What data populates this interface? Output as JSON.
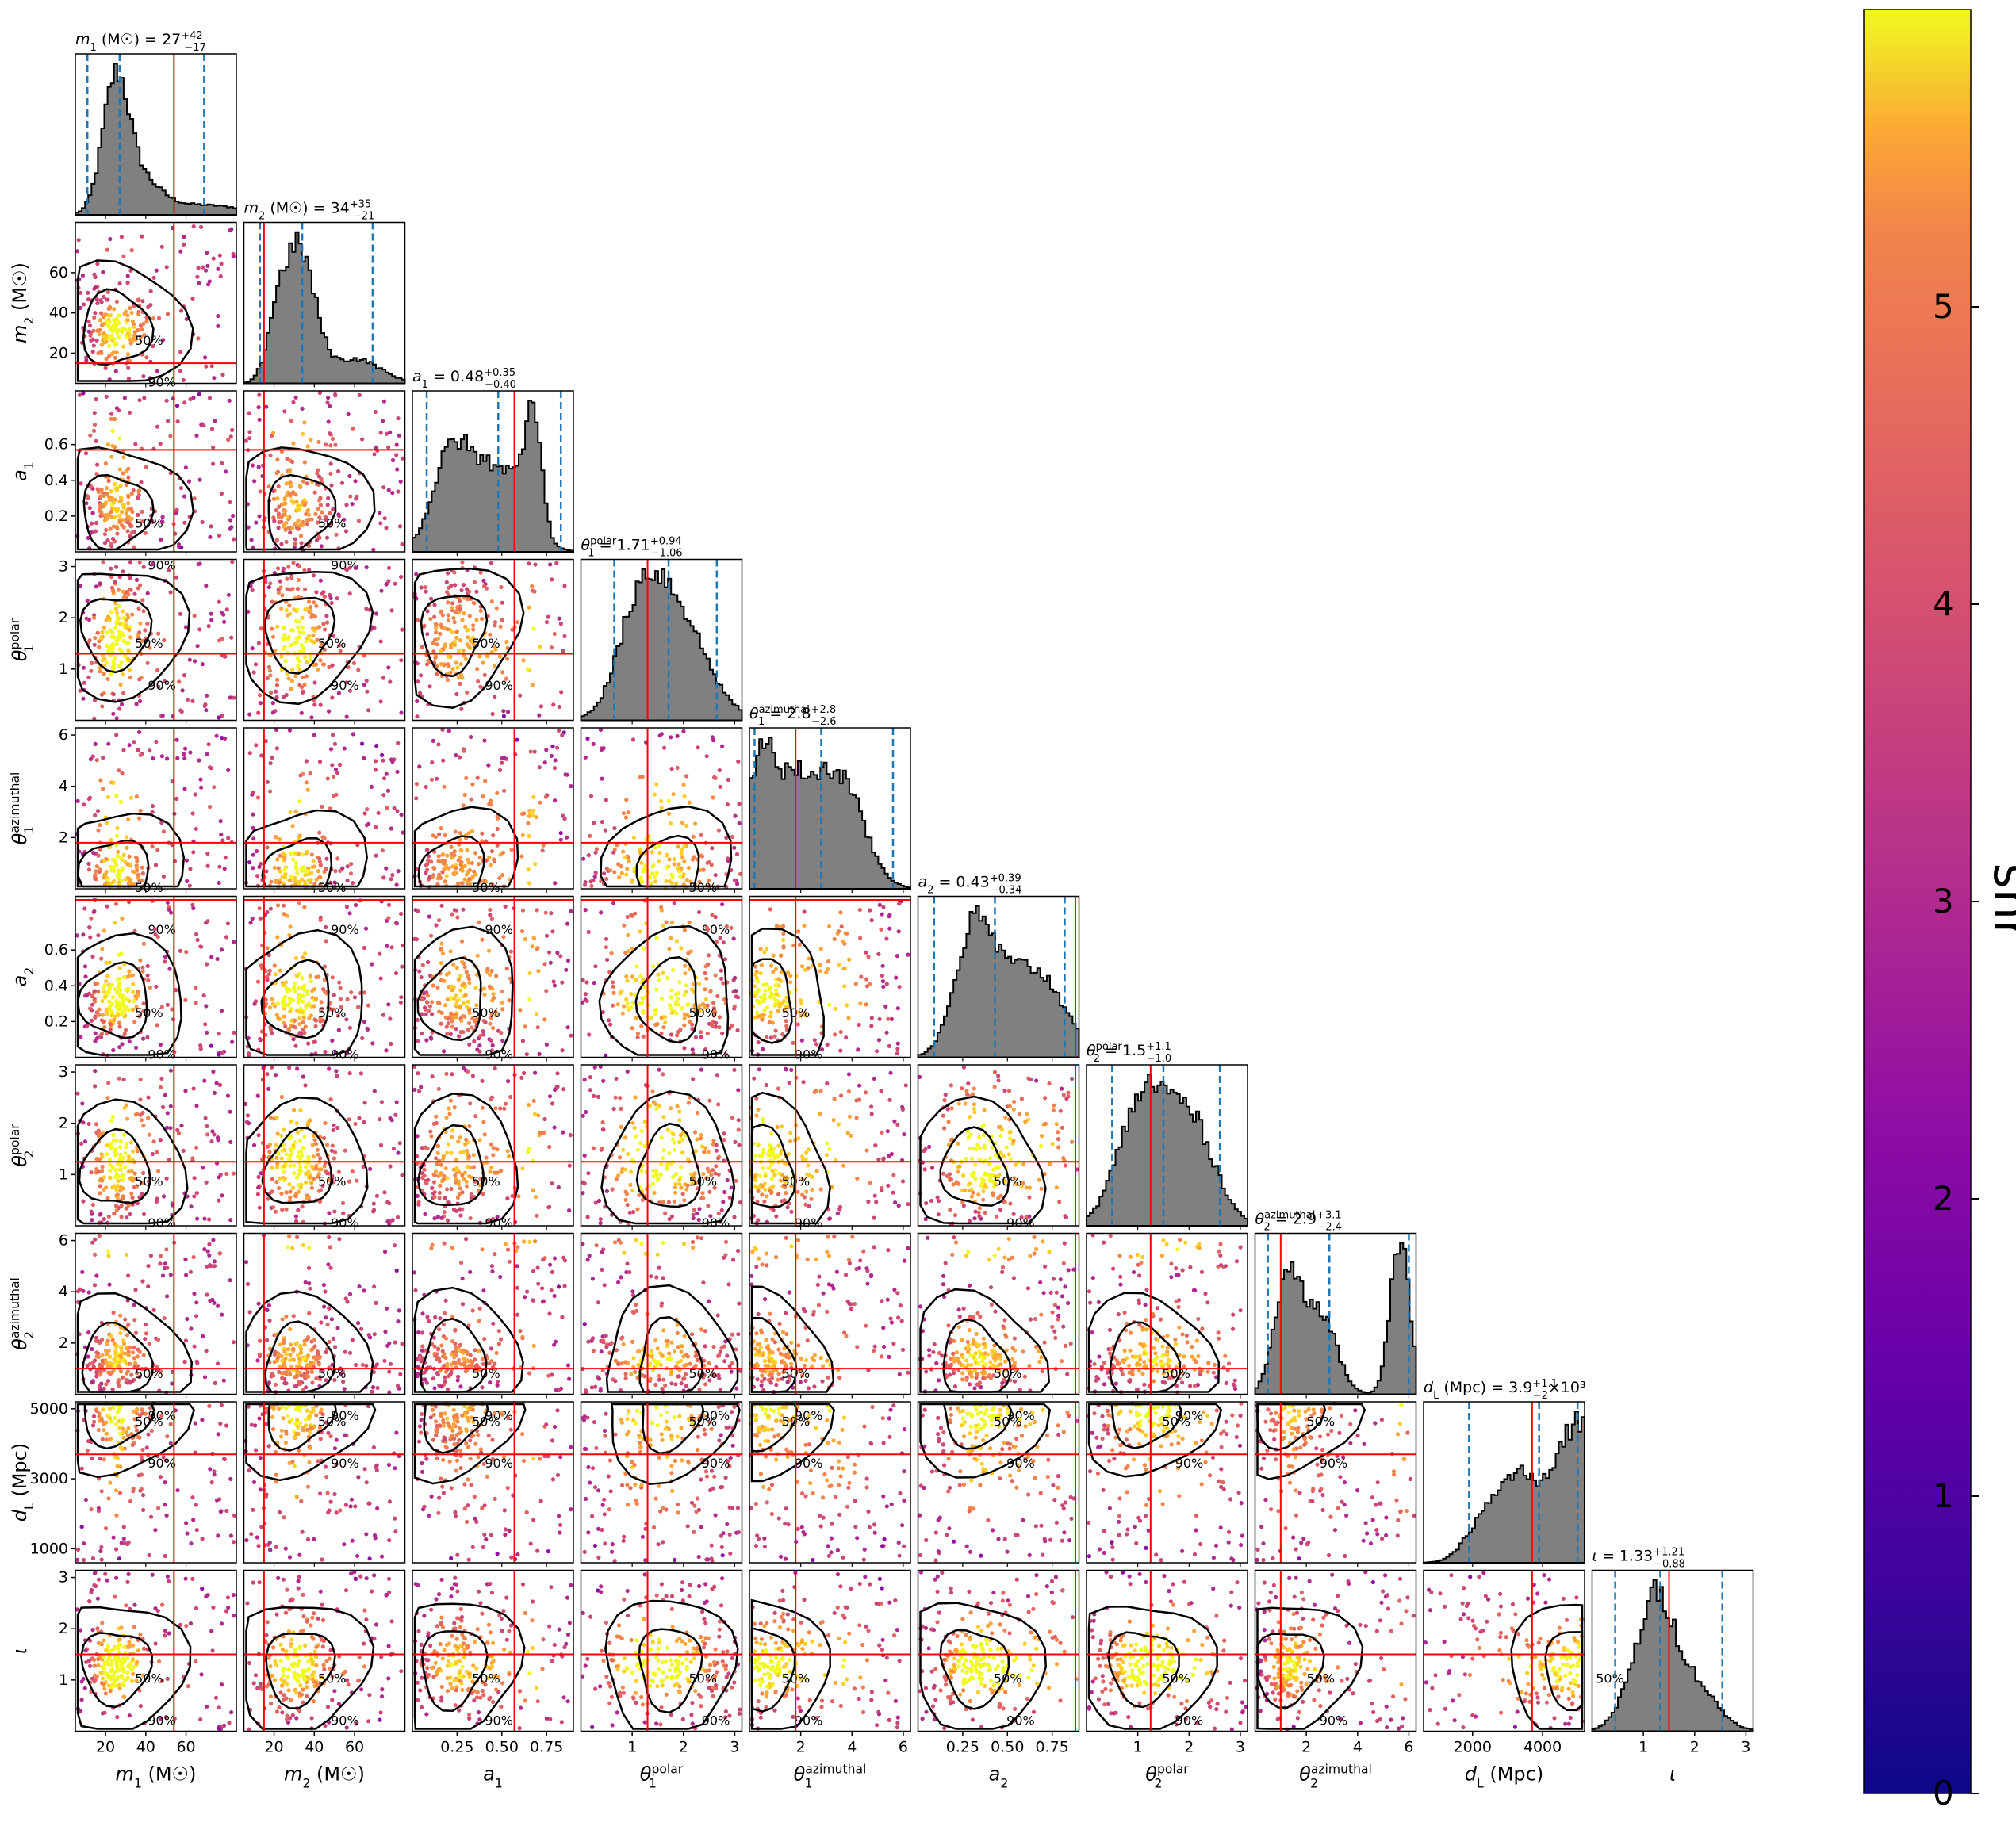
{
  "chart_data": {
    "type": "corner",
    "parameters": [
      {
        "key": "m1",
        "sym": "m",
        "sub": "1",
        "sup": "",
        "unit": "(M☉)",
        "median": "27",
        "plus": "+42",
        "minus": "−17",
        "range": [
          5,
          85
        ],
        "ticks": [
          20,
          40,
          60
        ],
        "tick_labels": [
          "20",
          "40",
          "60"
        ],
        "true_value": 54,
        "q_low": 11,
        "q_med": 27,
        "q_high": 69
      },
      {
        "key": "m2",
        "sym": "m",
        "sub": "2",
        "sup": "",
        "unit": "(M☉)",
        "median": "34",
        "plus": "+35",
        "minus": "−21",
        "range": [
          5,
          85
        ],
        "ticks": [
          20,
          40,
          60
        ],
        "tick_labels": [
          "20",
          "40",
          "60"
        ],
        "true_value": 15,
        "q_low": 13,
        "q_med": 34,
        "q_high": 69
      },
      {
        "key": "a1",
        "sym": "a",
        "sub": "1",
        "sup": "",
        "unit": "",
        "median": "0.48",
        "plus": "+0.35",
        "minus": "−0.40",
        "range": [
          0,
          0.9
        ],
        "ticks": [
          0.2,
          0.4,
          0.6
        ],
        "tick_labels": [
          "0.2",
          "0.4",
          "0.6"
        ],
        "x_ticks": [
          0.25,
          0.5,
          0.75
        ],
        "x_tick_labels": [
          "0.25",
          "0.50",
          "0.75"
        ],
        "true_value": 0.57,
        "q_low": 0.08,
        "q_med": 0.48,
        "q_high": 0.83
      },
      {
        "key": "theta1polar",
        "sym": "θ",
        "sub": "1",
        "sup": "polar",
        "unit": "",
        "median": "1.71",
        "plus": "+0.94",
        "minus": "−1.06",
        "range": [
          0,
          3.14
        ],
        "ticks": [
          1,
          2,
          3
        ],
        "tick_labels": [
          "1",
          "2",
          "3"
        ],
        "true_value": 1.3,
        "q_low": 0.65,
        "q_med": 1.71,
        "q_high": 2.65
      },
      {
        "key": "theta1azimuthal",
        "sym": "θ",
        "sub": "1",
        "sup": "azimuthal",
        "unit": "",
        "median": "2.8",
        "plus": "+2.8",
        "minus": "−2.6",
        "range": [
          0,
          6.28
        ],
        "ticks": [
          2,
          4,
          6
        ],
        "tick_labels": [
          "2",
          "4",
          "6"
        ],
        "true_value": 1.8,
        "q_low": 0.2,
        "q_med": 2.8,
        "q_high": 5.6
      },
      {
        "key": "a2",
        "sym": "a",
        "sub": "2",
        "sup": "",
        "unit": "",
        "median": "0.43",
        "plus": "+0.39",
        "minus": "−0.34",
        "range": [
          0,
          0.9
        ],
        "ticks": [
          0.2,
          0.4,
          0.6
        ],
        "tick_labels": [
          "0.2",
          "0.4",
          "0.6"
        ],
        "x_ticks": [
          0.25,
          0.5,
          0.75
        ],
        "x_tick_labels": [
          "0.25",
          "0.50",
          "0.75"
        ],
        "true_value": 0.88,
        "q_low": 0.09,
        "q_med": 0.43,
        "q_high": 0.82
      },
      {
        "key": "theta2polar",
        "sym": "θ",
        "sub": "2",
        "sup": "polar",
        "unit": "",
        "median": "1.5",
        "plus": "+1.1",
        "minus": "−1.0",
        "range": [
          0,
          3.14
        ],
        "ticks": [
          1,
          2,
          3
        ],
        "tick_labels": [
          "1",
          "2",
          "3"
        ],
        "true_value": 1.25,
        "q_low": 0.5,
        "q_med": 1.5,
        "q_high": 2.6
      },
      {
        "key": "theta2azimuthal",
        "sym": "θ",
        "sub": "2",
        "sup": "azimuthal",
        "unit": "",
        "median": "2.9",
        "plus": "+3.1",
        "minus": "−2.4",
        "range": [
          0,
          6.28
        ],
        "ticks": [
          2,
          4,
          6
        ],
        "tick_labels": [
          "2",
          "4",
          "6"
        ],
        "true_value": 1.0,
        "q_low": 0.5,
        "q_med": 2.9,
        "q_high": 6.0
      },
      {
        "key": "dL",
        "sym": "d",
        "sub": "L",
        "sup": "",
        "unit": "(Mpc)",
        "median": "3.9",
        "plus": "+1.1",
        "minus": "−2",
        "suffix": "×10³",
        "range": [
          600,
          5200
        ],
        "ticks": [
          1000,
          3000,
          5000
        ],
        "tick_labels": [
          "1000",
          "3000",
          "5000"
        ],
        "x_ticks": [
          2000,
          4000
        ],
        "x_tick_labels": [
          "2000",
          "4000"
        ],
        "true_value": 3700,
        "q_low": 1900,
        "q_med": 3900,
        "q_high": 5000
      },
      {
        "key": "iota",
        "sym": "ι",
        "sub": "",
        "sup": "",
        "unit": "",
        "median": "1.33",
        "plus": "+1.21",
        "minus": "−0.88",
        "range": [
          0,
          3.14
        ],
        "ticks": [
          1,
          2,
          3
        ],
        "tick_labels": [
          "1",
          "2",
          "3"
        ],
        "true_value": 1.5,
        "q_low": 0.45,
        "q_med": 1.33,
        "q_high": 2.54
      }
    ],
    "contour_levels": [
      "50%",
      "90%"
    ],
    "colorbar": {
      "label": "snr",
      "min": 0,
      "max": 6,
      "ticks": [
        0,
        1,
        2,
        3,
        4,
        5
      ],
      "tick_labels": [
        "0",
        "1",
        "2",
        "3",
        "4",
        "5"
      ],
      "colormap": "plasma"
    },
    "colors": {
      "histogram_fill": "#808080",
      "histogram_edge": "#000000",
      "true_value": "#ff0000",
      "quantile": "#1f77b4",
      "contour": "#000000"
    }
  }
}
